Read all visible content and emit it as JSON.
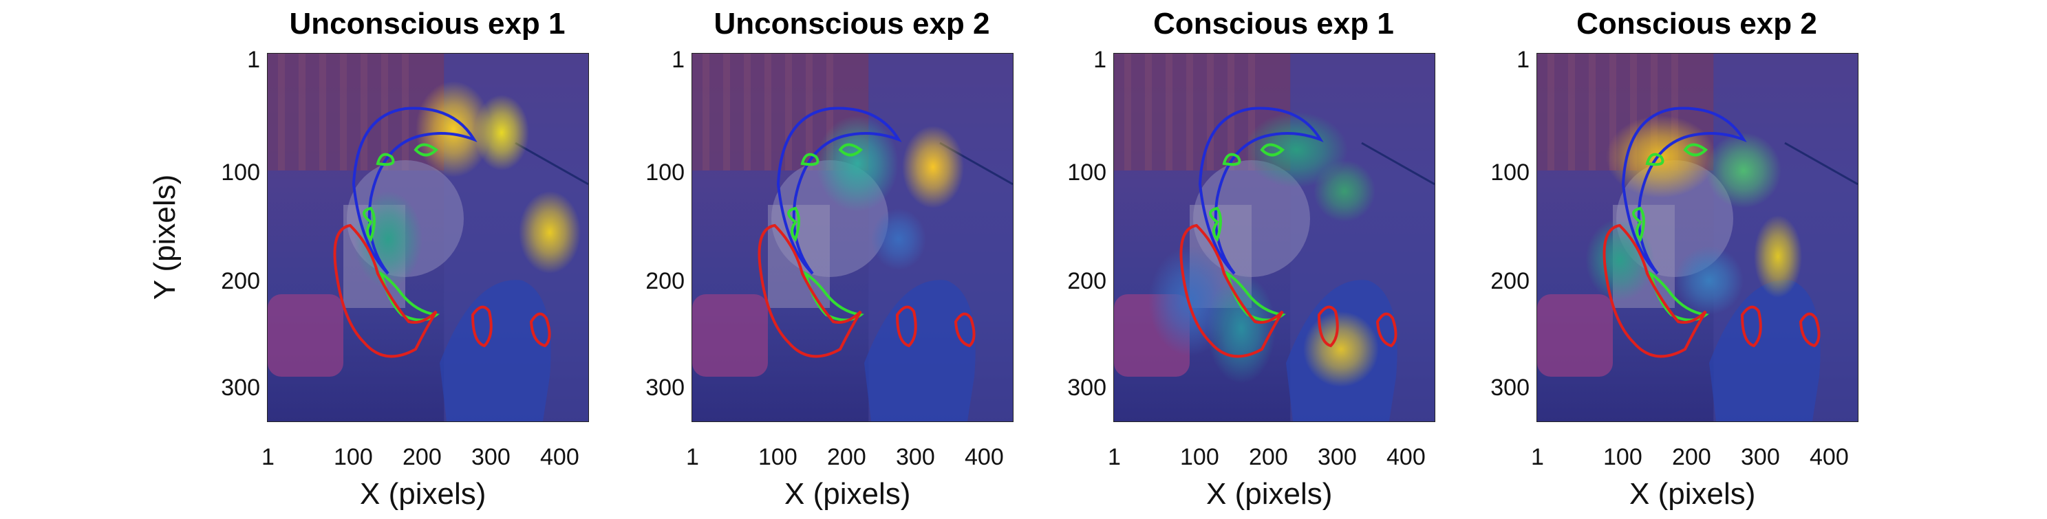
{
  "figure": {
    "ylabel": "Y (pixels)",
    "xlabel": "X (pixels)",
    "xticks": [
      "1",
      "100",
      "200",
      "300",
      "400"
    ],
    "yticks": [
      "1",
      "100",
      "200",
      "300"
    ],
    "panels": [
      {
        "title": "Unconscious exp 1"
      },
      {
        "title": "Unconscious exp 2"
      },
      {
        "title": "Conscious exp 1"
      },
      {
        "title": "Conscious exp 2"
      }
    ]
  },
  "colors": {
    "face_outline": "#1f2bd6",
    "eye_outline": "#33dd33",
    "region_outline": "#e0201c",
    "overlay": "#3b3a8e"
  }
}
